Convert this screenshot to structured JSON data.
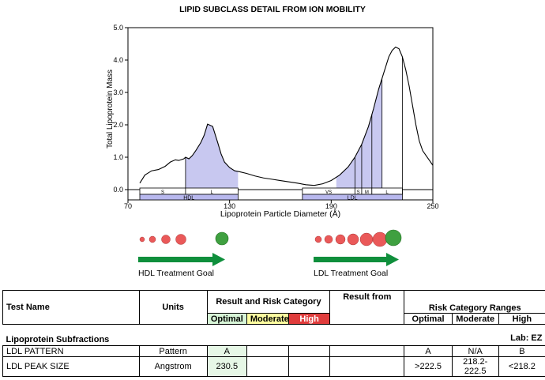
{
  "chart_title": "LIPID SUBCLASS DETAIL FROM ION MOBILITY",
  "chart_data": {
    "type": "area",
    "title": "LIPID SUBCLASS DETAIL FROM ION MOBILITY",
    "xlabel": "Lipoprotein Particle Diameter (Å)",
    "ylabel": "Total Lipoprotein Mass",
    "xlim": [
      70,
      250
    ],
    "ylim": [
      0,
      5.0
    ],
    "x_ticks": [
      "70",
      "130",
      "190",
      "250"
    ],
    "y_ticks": [
      "0.0",
      "1.0",
      "2.0",
      "3.0",
      "4.0",
      "5.0"
    ],
    "curve": {
      "x": [
        77,
        80,
        84,
        88,
        92,
        95,
        98,
        100,
        103,
        104,
        106,
        108,
        110,
        113,
        115,
        117,
        120,
        123,
        125,
        127,
        130,
        133,
        136,
        140,
        145,
        150,
        155,
        160,
        165,
        170,
        175,
        180,
        185,
        190,
        195,
        200,
        204,
        208,
        212,
        215,
        218,
        221,
        224,
        226,
        228,
        230,
        232,
        234,
        236,
        238,
        240,
        242,
        244,
        246,
        248,
        250
      ],
      "y": [
        0.2,
        0.45,
        0.58,
        0.62,
        0.72,
        0.85,
        0.92,
        0.9,
        0.95,
        1.0,
        0.95,
        1.05,
        1.2,
        1.45,
        1.68,
        2.02,
        1.95,
        1.45,
        1.1,
        0.85,
        0.68,
        0.58,
        0.55,
        0.5,
        0.42,
        0.36,
        0.32,
        0.28,
        0.24,
        0.2,
        0.15,
        0.13,
        0.18,
        0.28,
        0.45,
        0.7,
        1.0,
        1.4,
        1.95,
        2.5,
        3.1,
        3.6,
        4.1,
        4.3,
        4.4,
        4.35,
        4.1,
        3.7,
        3.2,
        2.6,
        2.0,
        1.5,
        1.2,
        1.05,
        0.9,
        0.75
      ]
    },
    "shaded_ranges": [
      [
        104,
        135
      ],
      [
        193,
        220
      ]
    ],
    "divider_lines": [
      104,
      204,
      208,
      214,
      220,
      232
    ]
  },
  "subclass_bar": {
    "top_labels": [
      "S",
      "L",
      "VS",
      "S",
      "M",
      "L"
    ],
    "bottom_labels": [
      "HDL",
      "LDL"
    ]
  },
  "particles": {
    "hdl_goal_label": "HDL Treatment Goal",
    "ldl_goal_label": "LDL Treatment Goal",
    "colors": {
      "red": "#e84848",
      "green": "#3fa040",
      "arrow": "#0f8f3c"
    }
  },
  "table": {
    "headers": {
      "test_name": "Test Name",
      "units": "Units",
      "result_risk": "Result and Risk Category",
      "result_from": "Result from",
      "risk_ranges": "Risk Category Ranges",
      "optimal": "Optimal",
      "moderate": "Moderate",
      "high": "High"
    },
    "section": {
      "title": "Lipoprotein Subfractions",
      "lab": "Lab: EZ"
    },
    "rows": [
      {
        "name": "LDL PATTERN",
        "units": "Pattern",
        "optimal_result": "A",
        "range_optimal": "A",
        "range_moderate": "N/A",
        "range_high": "B"
      },
      {
        "name": "LDL PEAK SIZE",
        "units": "Angstrom",
        "optimal_result": "230.5",
        "range_optimal": ">222.5",
        "range_moderate": "218.2-222.5",
        "range_high": "<218.2"
      }
    ]
  }
}
